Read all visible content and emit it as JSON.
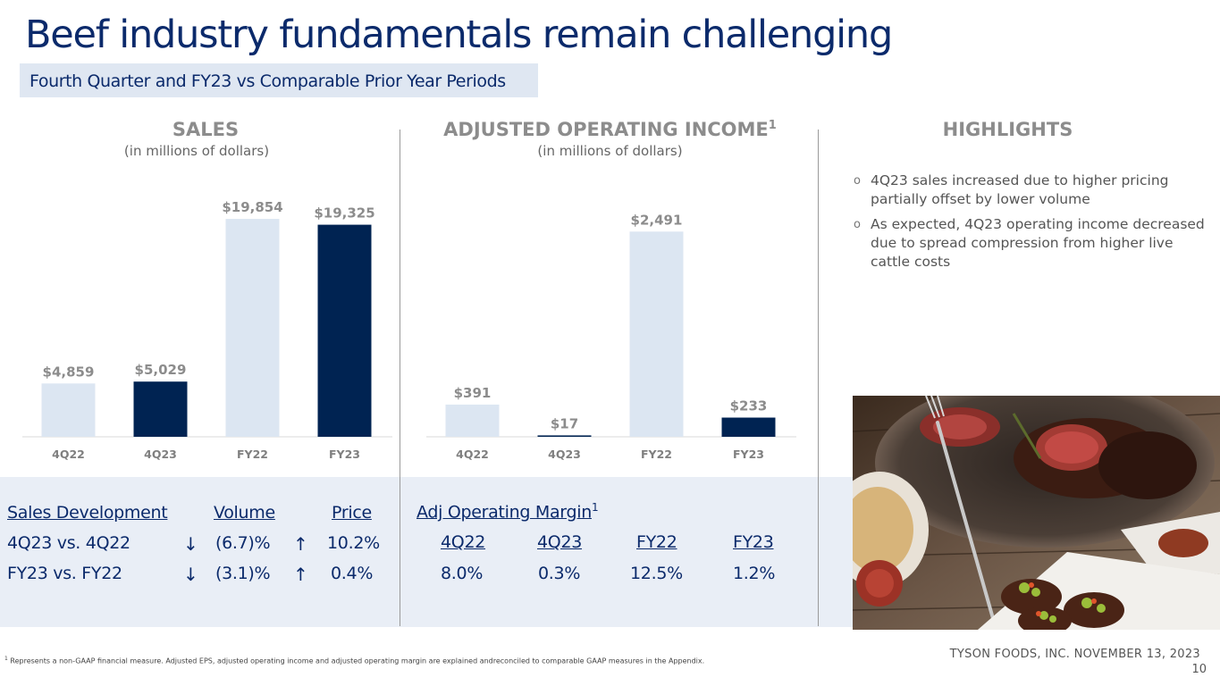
{
  "title": "Beef industry fundamentals remain challenging",
  "subtitle": "Fourth Quarter and FY23 vs Comparable Prior Year Periods",
  "sales": {
    "heading": "SALES",
    "sub": "(in millions of dollars)"
  },
  "aoi": {
    "heading": "ADJUSTED OPERATING INCOME",
    "sup": "1",
    "sub": "(in millions of dollars)"
  },
  "highlights": {
    "heading": "HIGHLIGHTS",
    "bullet_glyph": "o",
    "items": [
      "4Q23 sales increased due to higher pricing partially offset by lower volume",
      "As expected, 4Q23 operating income decreased due to spread compression from higher live cattle costs"
    ]
  },
  "chart_data": [
    {
      "type": "bar",
      "title": "SALES",
      "subtitle": "(in millions of dollars)",
      "categories": [
        "4Q22",
        "4Q23",
        "FY22",
        "FY23"
      ],
      "values": [
        4859,
        5029,
        19854,
        19325
      ],
      "labels": [
        "$4,859",
        "$5,029",
        "$19,854",
        "$19,325"
      ],
      "colors": [
        "#dce6f2",
        "#002352",
        "#dce6f2",
        "#002352"
      ],
      "ylim": [
        0,
        21000
      ]
    },
    {
      "type": "bar",
      "title": "ADJUSTED OPERATING INCOME",
      "subtitle": "(in millions of dollars)",
      "categories": [
        "4Q22",
        "4Q23",
        "FY22",
        "FY23"
      ],
      "values": [
        391,
        17,
        2491,
        233
      ],
      "labels": [
        "$391",
        "$17",
        "$2,491",
        "$233"
      ],
      "colors": [
        "#dce6f2",
        "#002352",
        "#dce6f2",
        "#002352"
      ],
      "ylim": [
        0,
        2700
      ]
    }
  ],
  "sales_dev": {
    "header": "Sales Development",
    "vol_header": "Volume",
    "price_header": "Price",
    "rows": [
      {
        "label": "4Q23 vs. 4Q22",
        "vol_arrow": "↓",
        "volume": "(6.7)%",
        "price_arrow": "↑",
        "price": "10.2%"
      },
      {
        "label": "FY23 vs. FY22",
        "vol_arrow": "↓",
        "volume": "(3.1)%",
        "price_arrow": "↑",
        "price": "0.4%"
      }
    ]
  },
  "margin": {
    "header": "Adj Operating Margin",
    "sup": "1",
    "periods": [
      "4Q22",
      "4Q23",
      "FY22",
      "FY23"
    ],
    "values": [
      "8.0%",
      "0.3%",
      "12.5%",
      "1.2%"
    ]
  },
  "footnote": {
    "sup": "1",
    "text": "Represents a non-GAAP financial measure. Adjusted EPS, adjusted operating income and adjusted operating margin are explained andreconciled to comparable GAAP measures in the Appendix."
  },
  "footer": {
    "company": "TYSON FOODS, INC. NOVEMBER 13, 2023",
    "page": "10"
  }
}
